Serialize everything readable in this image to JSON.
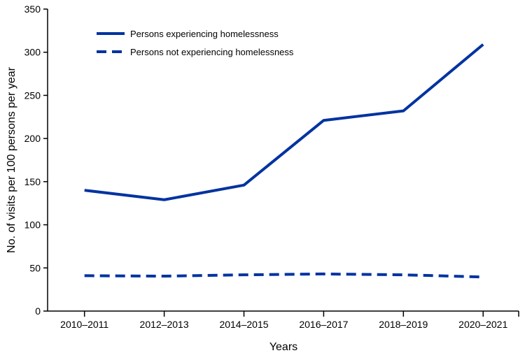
{
  "chart_data": {
    "type": "line",
    "title": "",
    "xlabel": "Years",
    "ylabel": "No. of visits per 100 persons per year",
    "categories": [
      "2010–2011",
      "2012–2013",
      "2014–2015",
      "2016–2017",
      "2018–2019",
      "2020–2021"
    ],
    "ylim": [
      0,
      350
    ],
    "yticks": [
      "0",
      "50",
      "100",
      "150",
      "200",
      "250",
      "300",
      "350"
    ],
    "grid": false,
    "legend_position": "top-left",
    "series": [
      {
        "name": "Persons experiencing homelessness",
        "style": "solid",
        "color": "#0033a0",
        "values": [
          140,
          129,
          146,
          221,
          232,
          309
        ]
      },
      {
        "name": "Persons not experiencing homelessness",
        "style": "dashed",
        "color": "#0033a0",
        "values": [
          41,
          40.5,
          42,
          43,
          42,
          39.5
        ]
      }
    ]
  }
}
